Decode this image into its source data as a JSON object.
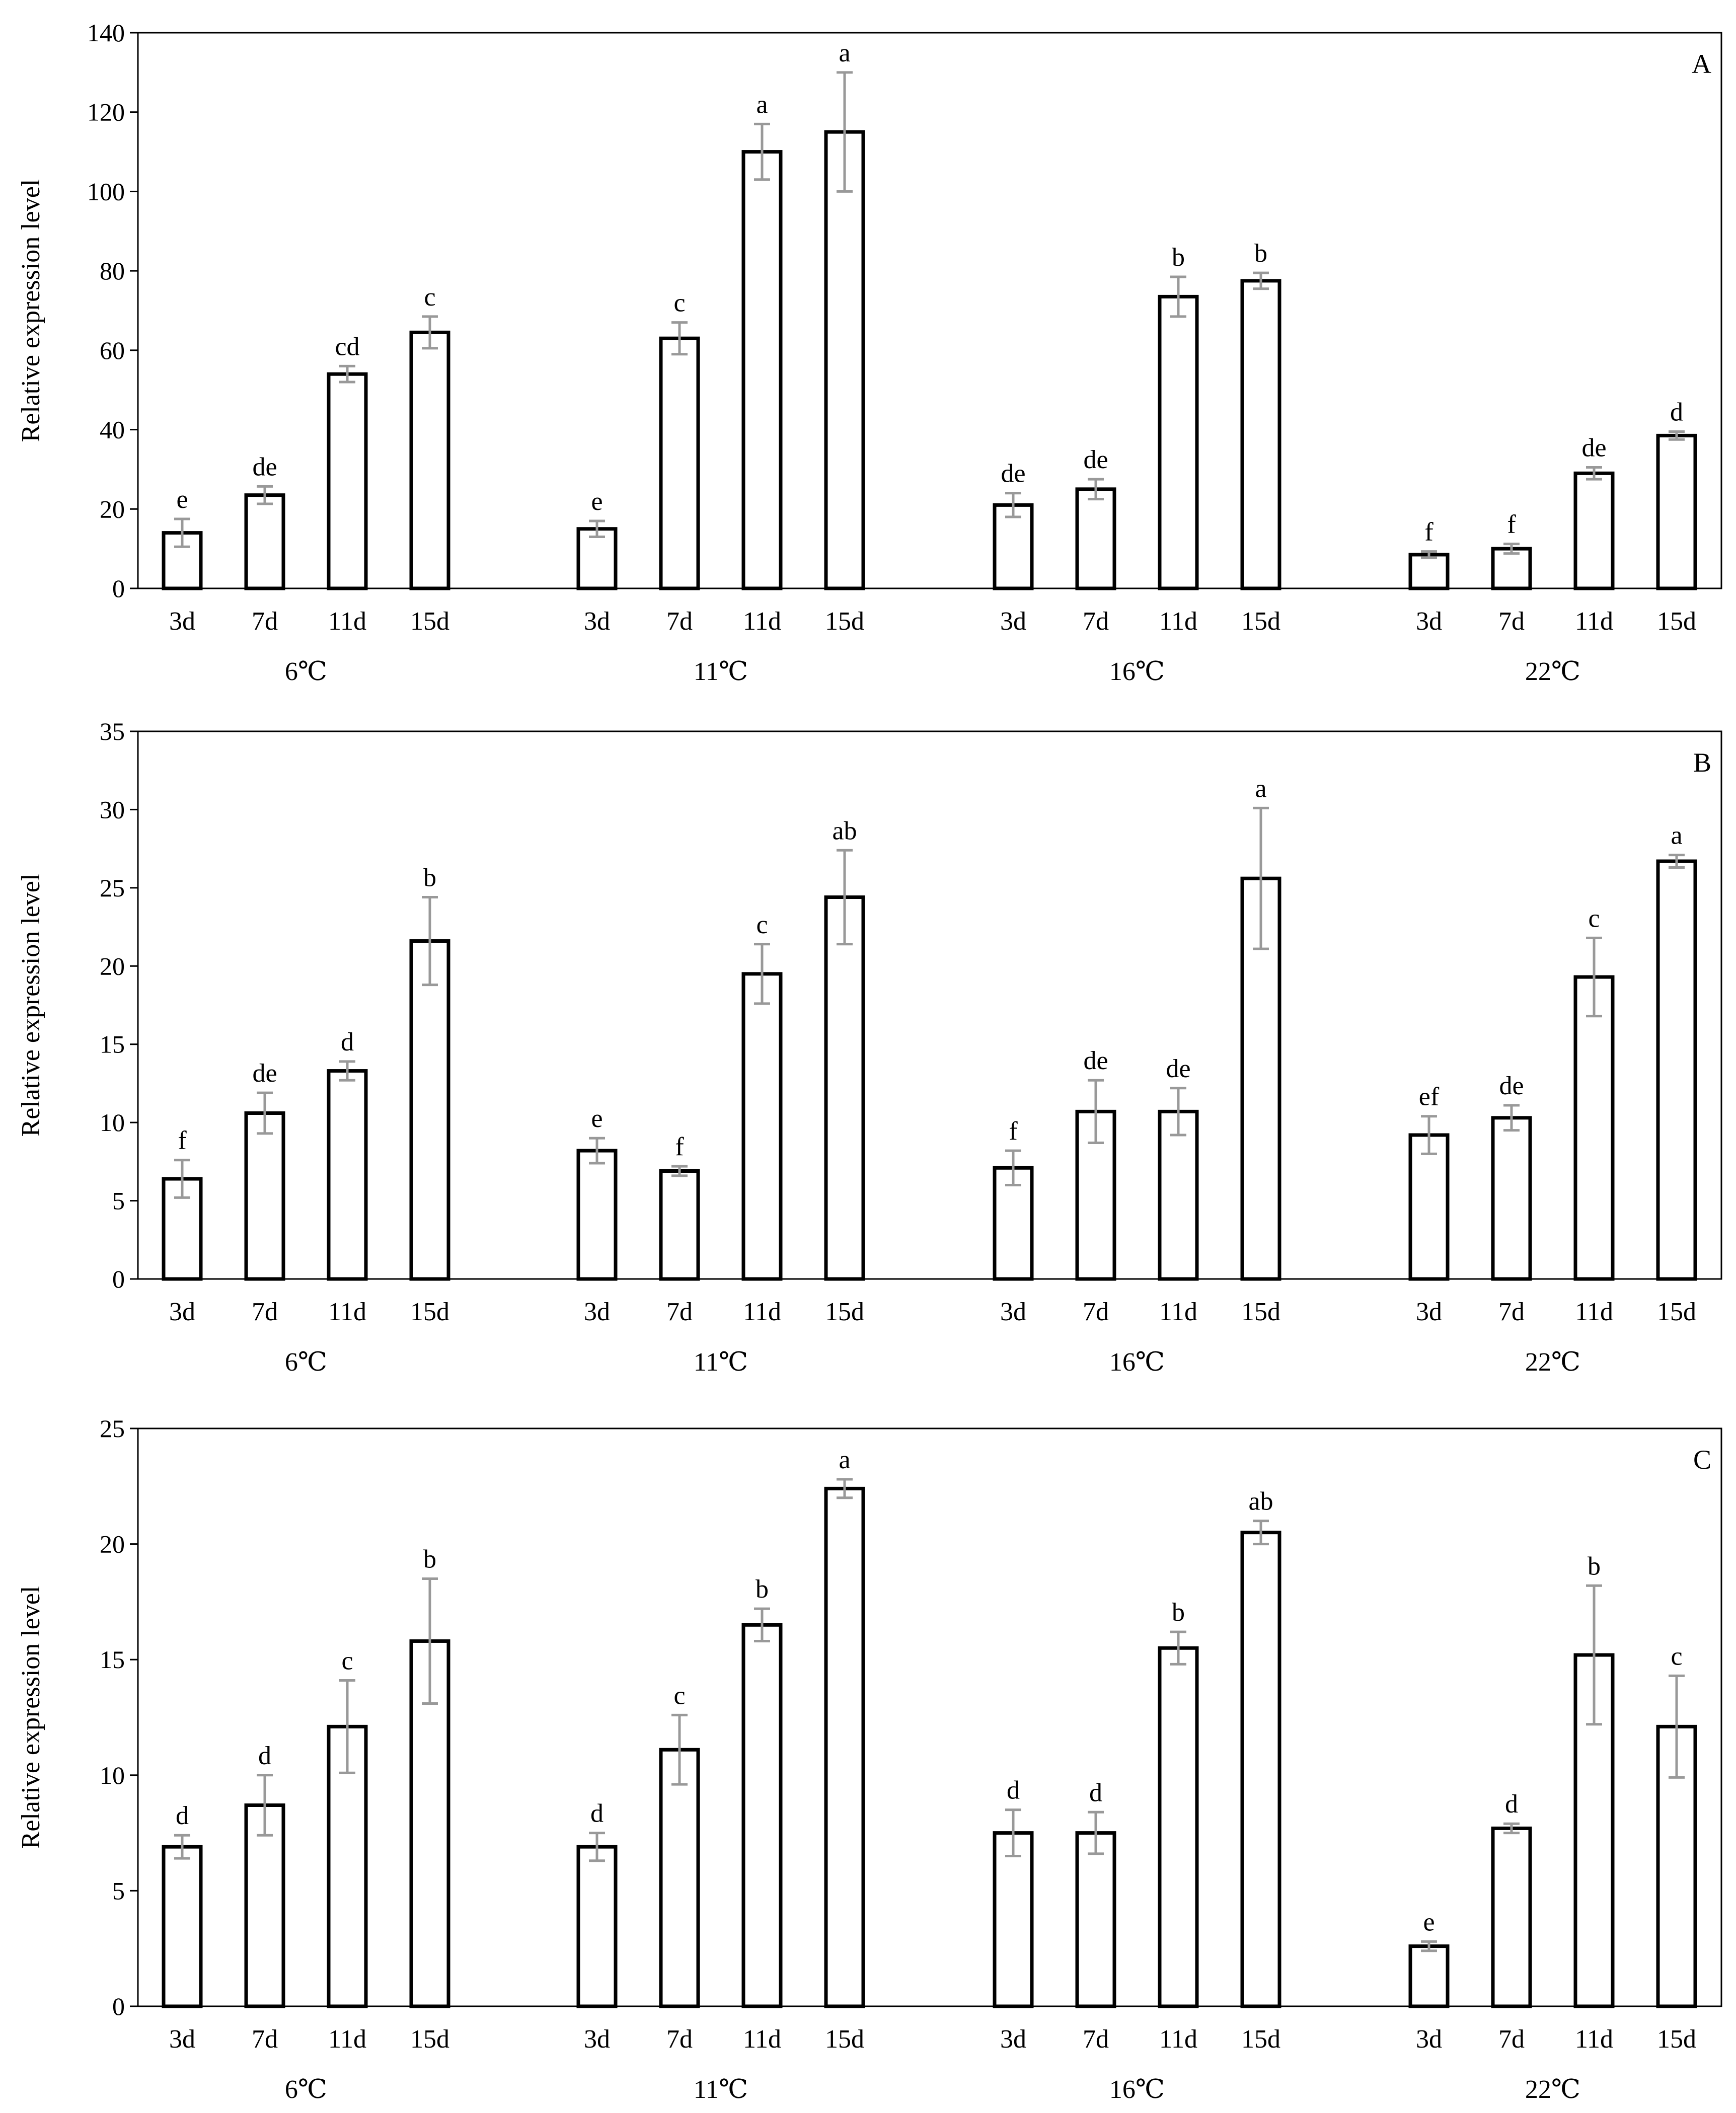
{
  "chart_data": [
    {
      "type": "bar",
      "panel_label": "A",
      "ylabel": "Relative expression level",
      "ylim": [
        0,
        140
      ],
      "yticks": [
        0,
        20,
        40,
        60,
        80,
        100,
        120,
        140
      ],
      "groups": [
        {
          "label": "6℃",
          "bars": [
            {
              "category": "3d",
              "value": 14,
              "error": 3.5,
              "letter": "e"
            },
            {
              "category": "7d",
              "value": 23.5,
              "error": 2.2,
              "letter": "de"
            },
            {
              "category": "11d",
              "value": 54,
              "error": 2,
              "letter": "cd"
            },
            {
              "category": "15d",
              "value": 64.5,
              "error": 4,
              "letter": "c"
            }
          ]
        },
        {
          "label": "11℃",
          "bars": [
            {
              "category": "3d",
              "value": 15,
              "error": 2,
              "letter": "e"
            },
            {
              "category": "7d",
              "value": 63,
              "error": 4,
              "letter": "c"
            },
            {
              "category": "11d",
              "value": 110,
              "error": 7,
              "letter": "a"
            },
            {
              "category": "15d",
              "value": 115,
              "error": 15,
              "letter": "a"
            }
          ]
        },
        {
          "label": "16℃",
          "bars": [
            {
              "category": "3d",
              "value": 21,
              "error": 3,
              "letter": "de"
            },
            {
              "category": "7d",
              "value": 25,
              "error": 2.5,
              "letter": "de"
            },
            {
              "category": "11d",
              "value": 73.5,
              "error": 5,
              "letter": "b"
            },
            {
              "category": "15d",
              "value": 77.5,
              "error": 2,
              "letter": "b"
            }
          ]
        },
        {
          "label": "22℃",
          "bars": [
            {
              "category": "3d",
              "value": 8.5,
              "error": 0.8,
              "letter": "f"
            },
            {
              "category": "7d",
              "value": 10,
              "error": 1.2,
              "letter": "f"
            },
            {
              "category": "11d",
              "value": 29,
              "error": 1.5,
              "letter": "de"
            },
            {
              "category": "15d",
              "value": 38.5,
              "error": 1,
              "letter": "d"
            }
          ]
        }
      ]
    },
    {
      "type": "bar",
      "panel_label": "B",
      "ylabel": "Relative expression level",
      "ylim": [
        0,
        35
      ],
      "yticks": [
        0,
        5,
        10,
        15,
        20,
        25,
        30,
        35
      ],
      "groups": [
        {
          "label": "6℃",
          "bars": [
            {
              "category": "3d",
              "value": 6.4,
              "error": 1.2,
              "letter": "f"
            },
            {
              "category": "7d",
              "value": 10.6,
              "error": 1.3,
              "letter": "de"
            },
            {
              "category": "11d",
              "value": 13.3,
              "error": 0.6,
              "letter": "d"
            },
            {
              "category": "15d",
              "value": 21.6,
              "error": 2.8,
              "letter": "b"
            }
          ]
        },
        {
          "label": "11℃",
          "bars": [
            {
              "category": "3d",
              "value": 8.2,
              "error": 0.8,
              "letter": "e"
            },
            {
              "category": "7d",
              "value": 6.9,
              "error": 0.3,
              "letter": "f"
            },
            {
              "category": "11d",
              "value": 19.5,
              "error": 1.9,
              "letter": "c"
            },
            {
              "category": "15d",
              "value": 24.4,
              "error": 3,
              "letter": "ab"
            }
          ]
        },
        {
          "label": "16℃",
          "bars": [
            {
              "category": "3d",
              "value": 7.1,
              "error": 1.1,
              "letter": "f"
            },
            {
              "category": "7d",
              "value": 10.7,
              "error": 2,
              "letter": "de"
            },
            {
              "category": "11d",
              "value": 10.7,
              "error": 1.5,
              "letter": "de"
            },
            {
              "category": "15d",
              "value": 25.6,
              "error": 4.5,
              "letter": "a"
            }
          ]
        },
        {
          "label": "22℃",
          "bars": [
            {
              "category": "3d",
              "value": 9.2,
              "error": 1.2,
              "letter": "ef"
            },
            {
              "category": "7d",
              "value": 10.3,
              "error": 0.8,
              "letter": "de"
            },
            {
              "category": "11d",
              "value": 19.3,
              "error": 2.5,
              "letter": "c"
            },
            {
              "category": "15d",
              "value": 26.7,
              "error": 0.4,
              "letter": "a"
            }
          ]
        }
      ]
    },
    {
      "type": "bar",
      "panel_label": "C",
      "ylabel": "Relative expression level",
      "ylim": [
        0,
        25
      ],
      "yticks": [
        0,
        5,
        10,
        15,
        20,
        25
      ],
      "groups": [
        {
          "label": "6℃",
          "bars": [
            {
              "category": "3d",
              "value": 6.9,
              "error": 0.5,
              "letter": "d"
            },
            {
              "category": "7d",
              "value": 8.7,
              "error": 1.3,
              "letter": "d"
            },
            {
              "category": "11d",
              "value": 12.1,
              "error": 2,
              "letter": "c"
            },
            {
              "category": "15d",
              "value": 15.8,
              "error": 2.7,
              "letter": "b"
            }
          ]
        },
        {
          "label": "11℃",
          "bars": [
            {
              "category": "3d",
              "value": 6.9,
              "error": 0.6,
              "letter": "d"
            },
            {
              "category": "7d",
              "value": 11.1,
              "error": 1.5,
              "letter": "c"
            },
            {
              "category": "11d",
              "value": 16.5,
              "error": 0.7,
              "letter": "b"
            },
            {
              "category": "15d",
              "value": 22.4,
              "error": 0.4,
              "letter": "a"
            }
          ]
        },
        {
          "label": "16℃",
          "bars": [
            {
              "category": "3d",
              "value": 7.5,
              "error": 1,
              "letter": "d"
            },
            {
              "category": "7d",
              "value": 7.5,
              "error": 0.9,
              "letter": "d"
            },
            {
              "category": "11d",
              "value": 15.5,
              "error": 0.7,
              "letter": "b"
            },
            {
              "category": "15d",
              "value": 20.5,
              "error": 0.5,
              "letter": "ab"
            }
          ]
        },
        {
          "label": "22℃",
          "bars": [
            {
              "category": "3d",
              "value": 2.6,
              "error": 0.2,
              "letter": "e"
            },
            {
              "category": "7d",
              "value": 7.7,
              "error": 0.2,
              "letter": "d"
            },
            {
              "category": "11d",
              "value": 15.2,
              "error": 3,
              "letter": "b"
            },
            {
              "category": "15d",
              "value": 12.1,
              "error": 2.2,
              "letter": "c"
            }
          ]
        }
      ]
    }
  ]
}
